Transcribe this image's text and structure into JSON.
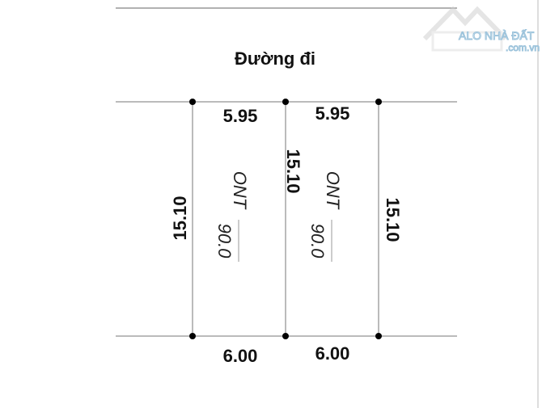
{
  "title": "Đường đi",
  "watermark": {
    "name": "ALO NHÀ ĐẤT",
    "domain": ".com.vn"
  },
  "plots": [
    {
      "top": "5.95",
      "bottom": "6.00",
      "side": "15.10",
      "land_type": "ONT",
      "area": "90.0"
    },
    {
      "top": "5.95",
      "bottom": "6.00",
      "side": "15.10",
      "land_type": "ONT",
      "area": "90.0"
    }
  ],
  "right_side": "15.10"
}
